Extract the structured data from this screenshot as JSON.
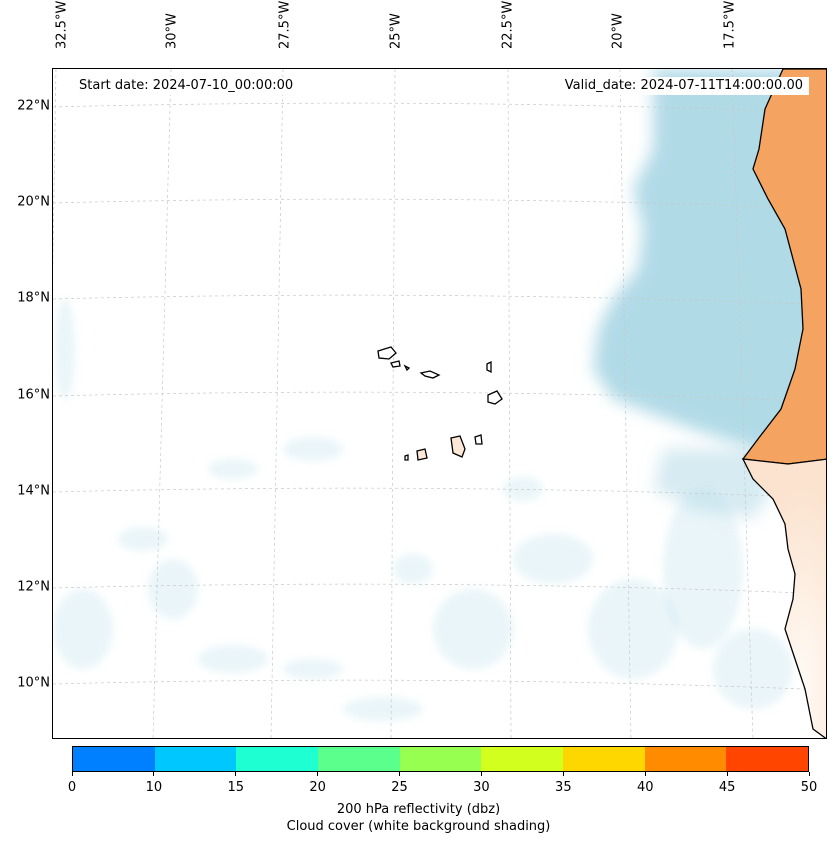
{
  "header": {
    "start_date": "Start date: 2024-07-10_00:00:00",
    "valid_date": "Valid_date: 2024-07-11T14:00:00.00"
  },
  "map": {
    "lon_labels": [
      "32.5°W",
      "30°W",
      "27.5°W",
      "25°W",
      "22.5°W",
      "20°W",
      "17.5°W"
    ],
    "lat_labels": [
      "22°N",
      "20°N",
      "18°N",
      "16°N",
      "14°N",
      "12°N",
      "10°N"
    ],
    "colors": {
      "cloud_shading": "#add8e6",
      "land_fill": "#f4a460",
      "coastline": "#000000",
      "gridline": "#c8c8c8"
    }
  },
  "colorbar": {
    "ticks": [
      "0",
      "10",
      "15",
      "20",
      "25",
      "30",
      "35",
      "40",
      "45",
      "50"
    ],
    "colors": [
      "#0080ff",
      "#00c8ff",
      "#1effd2",
      "#5aff8c",
      "#96ff50",
      "#d2ff1e",
      "#ffd700",
      "#ff8c00",
      "#ff4500"
    ]
  },
  "captions": {
    "line1": "200 hPa reflectivity (dbz)",
    "line2": "Cloud cover (white background shading)"
  }
}
